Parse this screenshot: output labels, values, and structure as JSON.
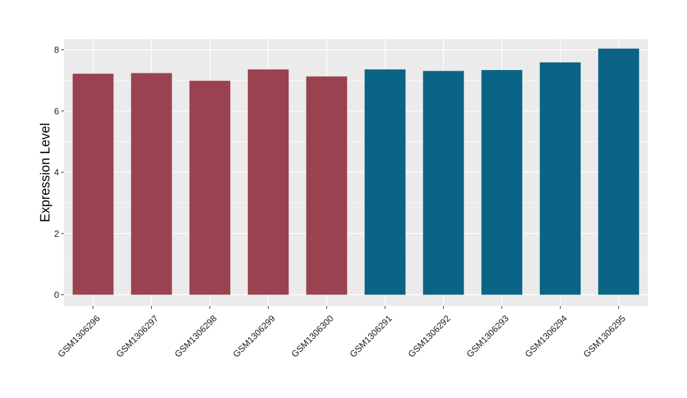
{
  "chart_data": {
    "type": "bar",
    "ylabel": "Expression Level",
    "xlabel": "",
    "categories": [
      "GSM1306296",
      "GSM1306297",
      "GSM1306298",
      "GSM1306299",
      "GSM1306300",
      "GSM1306291",
      "GSM1306292",
      "GSM1306293",
      "GSM1306294",
      "GSM1306295"
    ],
    "values": [
      7.22,
      7.24,
      6.99,
      7.36,
      7.13,
      7.36,
      7.31,
      7.34,
      7.59,
      8.04
    ],
    "colors": [
      "#9a4250",
      "#9a4250",
      "#9a4250",
      "#9a4250",
      "#9a4250",
      "#0b6485",
      "#0b6485",
      "#0b6485",
      "#0b6485",
      "#0b6485"
    ],
    "ylim": [
      -0.37,
      8.35
    ],
    "yticks": [
      0,
      2,
      4,
      6,
      8
    ],
    "grid": true,
    "panel_background": "#ebebeb",
    "grid_color": "#ffffff"
  }
}
